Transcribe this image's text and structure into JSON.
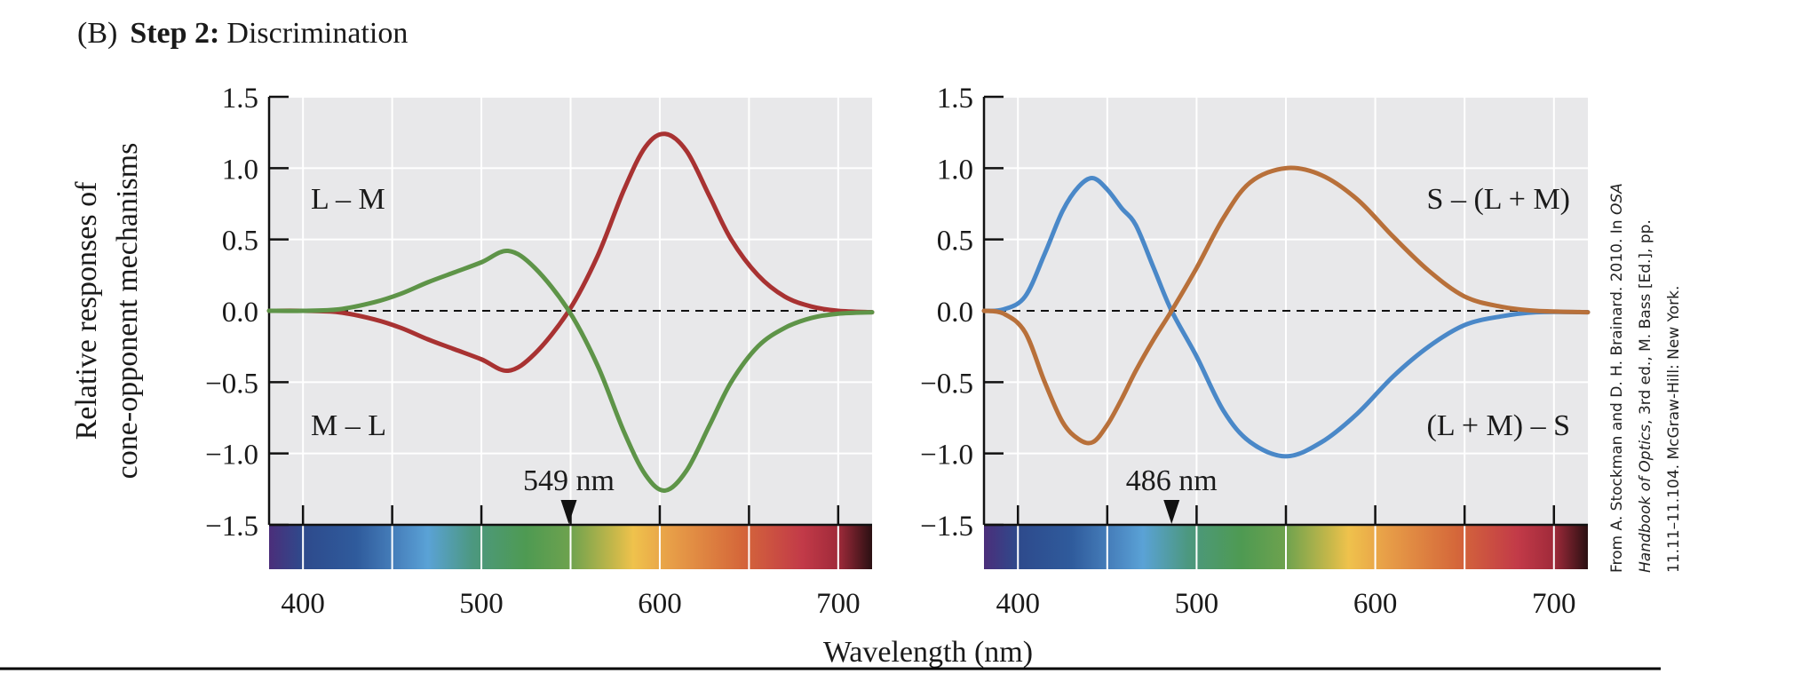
{
  "figure": {
    "panel_label": "(B)",
    "title_bold": "Step 2:",
    "title_rest": "Discrimination",
    "credit_line1": "From A. Stockman and D. H. Brainard. 2010. In ",
    "credit_line1_italic": "OSA",
    "credit_line2_italic": "Handbook of Optics",
    "credit_line2": ", 3rd ed., M. Bass [Ed.], pp.",
    "credit_line3": "11.11–11.104. McGraw-Hill: New York."
  },
  "chart_data": [
    {
      "type": "line",
      "ylabel_line1": "Relative responses of",
      "ylabel_line2": "cone-opponent mechanisms",
      "xlabel": "Wavelength (nm)",
      "xlim": [
        381,
        719
      ],
      "ylim": [
        -1.5,
        1.5
      ],
      "xticks": [
        "400",
        "500",
        "600",
        "700"
      ],
      "yticks": [
        "1.5",
        "1.0",
        "0.5",
        "0.0",
        "−0.5",
        "−1.0",
        "−1.5"
      ],
      "grid": true,
      "zero_line": "dashed",
      "annotation": {
        "text": "549 nm",
        "x": 549
      },
      "series": [
        {
          "name": "L – M",
          "color": "#a83232",
          "x": [
            381,
            400,
            420,
            440,
            455,
            470,
            485,
            500,
            515,
            530,
            549,
            565,
            580,
            592,
            603,
            615,
            628,
            640,
            655,
            670,
            685,
            700,
            719
          ],
          "y": [
            0,
            0,
            -0.01,
            -0.06,
            -0.12,
            -0.2,
            -0.27,
            -0.34,
            -0.42,
            -0.3,
            0,
            0.38,
            0.85,
            1.15,
            1.24,
            1.12,
            0.8,
            0.5,
            0.25,
            0.1,
            0.03,
            0,
            -0.01
          ]
        },
        {
          "name": "M – L",
          "color": "#5e9448",
          "x": [
            381,
            400,
            420,
            440,
            455,
            470,
            485,
            500,
            515,
            530,
            549,
            565,
            580,
            592,
            603,
            615,
            628,
            640,
            655,
            670,
            685,
            700,
            719
          ],
          "y": [
            0,
            0,
            0.01,
            0.06,
            0.12,
            0.2,
            0.27,
            0.34,
            0.42,
            0.3,
            0,
            -0.38,
            -0.85,
            -1.15,
            -1.26,
            -1.12,
            -0.8,
            -0.5,
            -0.25,
            -0.12,
            -0.05,
            -0.02,
            -0.01
          ]
        }
      ]
    },
    {
      "type": "line",
      "xlim": [
        381,
        719
      ],
      "ylim": [
        -1.5,
        1.5
      ],
      "xticks": [
        "400",
        "500",
        "600",
        "700"
      ],
      "yticks": [
        "1.5",
        "1.0",
        "0.5",
        "0.0",
        "−0.5",
        "−1.0",
        "−1.5"
      ],
      "grid": true,
      "zero_line": "dashed",
      "annotation": {
        "text": "486 nm",
        "x": 486
      },
      "series": [
        {
          "name": "S – (L + M)",
          "color": "#4a88c8",
          "x": [
            381,
            392,
            404,
            415,
            425,
            434,
            442,
            450,
            458,
            466,
            476,
            486,
            500,
            515,
            530,
            550,
            570,
            590,
            610,
            630,
            650,
            670,
            690,
            719
          ],
          "y": [
            0,
            0.01,
            0.1,
            0.4,
            0.7,
            0.87,
            0.93,
            0.85,
            0.72,
            0.6,
            0.3,
            0,
            -0.32,
            -0.7,
            -0.92,
            -1.02,
            -0.92,
            -0.72,
            -0.46,
            -0.25,
            -0.1,
            -0.04,
            -0.01,
            -0.01
          ]
        },
        {
          "name": "(L + M) – S",
          "color": "#b8703a",
          "x": [
            381,
            392,
            404,
            415,
            425,
            434,
            442,
            450,
            458,
            466,
            476,
            486,
            500,
            515,
            530,
            550,
            570,
            590,
            610,
            630,
            650,
            670,
            690,
            719
          ],
          "y": [
            0,
            -0.02,
            -0.15,
            -0.5,
            -0.78,
            -0.9,
            -0.92,
            -0.8,
            -0.62,
            -0.42,
            -0.2,
            0,
            0.3,
            0.65,
            0.9,
            1.0,
            0.95,
            0.78,
            0.52,
            0.28,
            0.1,
            0.03,
            0,
            -0.01
          ]
        }
      ]
    }
  ],
  "spectrum": {
    "stops": [
      [
        381,
        "#4b2e7a"
      ],
      [
        400,
        "#2e4a8c"
      ],
      [
        430,
        "#2f5b9c"
      ],
      [
        455,
        "#4a85c0"
      ],
      [
        470,
        "#5aa2d6"
      ],
      [
        495,
        "#4c9880"
      ],
      [
        525,
        "#4e9a52"
      ],
      [
        550,
        "#6ea24e"
      ],
      [
        575,
        "#c8b84a"
      ],
      [
        585,
        "#efc24c"
      ],
      [
        605,
        "#e8a048"
      ],
      [
        645,
        "#d5683a"
      ],
      [
        680,
        "#c23a48"
      ],
      [
        700,
        "#a02a3a"
      ],
      [
        719,
        "#2a1012"
      ]
    ]
  },
  "colors": {
    "plot_bg": "#e8e8ea",
    "grid": "#ffffff"
  }
}
